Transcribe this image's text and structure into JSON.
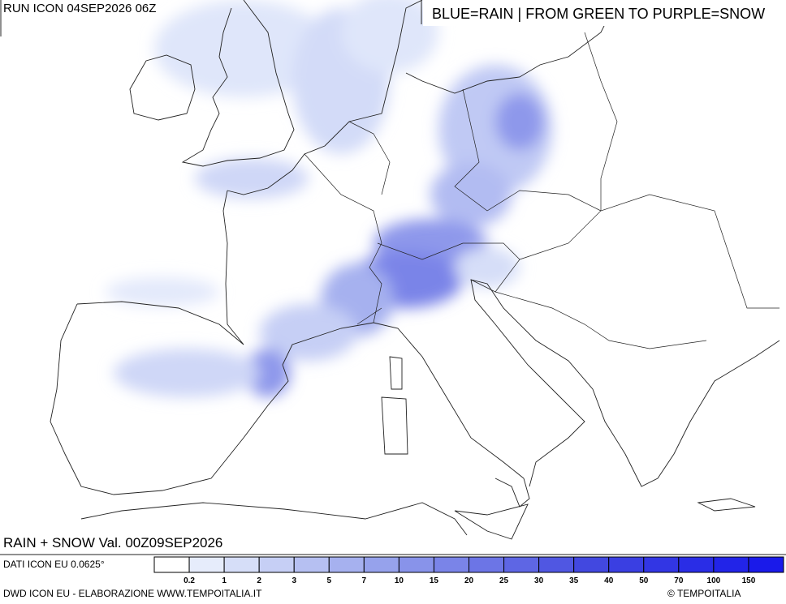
{
  "header": {
    "run": "RUN ICON 04SEP2026 06Z",
    "legend_note": "BLUE=RAIN | FROM GREEN TO PURPLE=SNOW"
  },
  "map": {
    "title": "RAIN + SNOW Val. 00Z09SEP2026"
  },
  "footer": {
    "data_source": "DATI ICON EU 0.0625°",
    "credit": "DWD ICON EU - ELABORAZIONE WWW.TEMPOITALIA.IT",
    "copyright": "© TEMPOITALIA"
  },
  "scale": {
    "labels": [
      0.2,
      1,
      2,
      3,
      5,
      7,
      10,
      15,
      20,
      25,
      30,
      35,
      40,
      50,
      70,
      100,
      150
    ],
    "colors": [
      "#ffffff",
      "#e6ecfb",
      "#d6def8",
      "#c6cff5",
      "#b6c0f2",
      "#a6b1ef",
      "#96a2ec",
      "#8893ea",
      "#7a84e8",
      "#6c75e6",
      "#5e66e4",
      "#5057e2",
      "#4248e0",
      "#3a3fe2",
      "#3236e4",
      "#2a2de6",
      "#2224e8",
      "#1a1aea"
    ]
  }
}
